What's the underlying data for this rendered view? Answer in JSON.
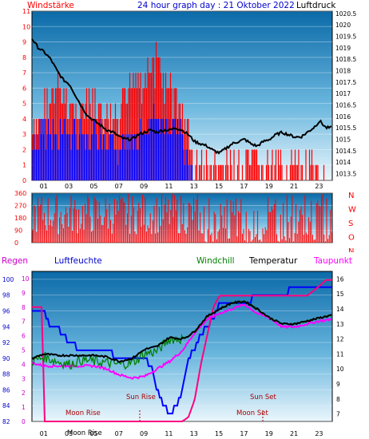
{
  "panel1": {
    "title": "24 hour graph day : 21 Oktober 2022",
    "left_label": "Windstärke",
    "right_label": "Luftdruck",
    "left_ticks": [
      "0",
      "1",
      "2",
      "3",
      "4",
      "5",
      "6",
      "7",
      "8",
      "9",
      "10",
      "11"
    ],
    "right_ticks": [
      "1013.5",
      "1014",
      "1014.5",
      "1015",
      "1015.5",
      "1016",
      "1016.5",
      "1017",
      "1017.5",
      "1018",
      "1018.5",
      "1019",
      "1019.5",
      "1020",
      "1020.5"
    ],
    "hour_ticks": [
      "01",
      "03",
      "05",
      "07",
      "09",
      "11",
      "13",
      "15",
      "17",
      "19",
      "21",
      "23"
    ]
  },
  "panel2": {
    "left_ticks": [
      "0",
      "90",
      "180",
      "270",
      "360"
    ],
    "dir_letters": [
      "N",
      "W",
      "S",
      "O",
      "N"
    ]
  },
  "panel3": {
    "labels": {
      "regen": "Regen",
      "luftfeuchte": "Luftfeuchte",
      "windchill": "Windchill",
      "temperatur": "Temperatur",
      "taupunkt": "Taupunkt"
    },
    "left_humidity_ticks": [
      "82",
      "84",
      "86",
      "88",
      "90",
      "92",
      "94",
      "96",
      "98",
      "100"
    ],
    "left_rain_ticks": [
      "0",
      "1",
      "2",
      "3",
      "4",
      "5",
      "6",
      "7",
      "8",
      "9",
      "10"
    ],
    "right_temp_ticks": [
      "7",
      "8",
      "9",
      "10",
      "11",
      "12",
      "13",
      "14",
      "15",
      "16"
    ],
    "hour_ticks": [
      "01",
      "03",
      "05",
      "07",
      "09",
      "11",
      "13",
      "15",
      "17",
      "19",
      "21",
      "23"
    ],
    "annotations": {
      "moon_rise": "Moon Rise",
      "moon_rise_axis": "Moon Rise",
      "sun_rise": "Sun Rise",
      "sun_set": "Sun Set",
      "moon_set": "Moon Set"
    }
  },
  "colors": {
    "wind_red": "#ff0000",
    "wind_blue": "#0000ff",
    "pressure_black": "#000000",
    "humidity_blue": "#0000ff",
    "temperature_black": "#000000",
    "windchill_green": "#008000",
    "dewpoint_magenta": "#ff00ff",
    "rain_magenta": "#ff0080",
    "label_red": "#ff0000",
    "label_blue": "#0000cc",
    "label_magenta": "#cc00cc"
  },
  "chart_data": [
    {
      "type": "line",
      "title": "24 hour graph day : 21 Oktober 2022",
      "x_range_hours": [
        0,
        24
      ],
      "ylim_left": [
        0,
        11
      ],
      "ylim_right": [
        1013.2,
        1020.6
      ],
      "series": [
        {
          "name": "Luftdruck",
          "axis": "right",
          "x": [
            0,
            0.5,
            1,
            1.5,
            2,
            2.5,
            3,
            3.5,
            4,
            4.5,
            5,
            5.5,
            6,
            6.5,
            7,
            7.5,
            8,
            8.5,
            9,
            9.5,
            10,
            10.5,
            11,
            11.5,
            12,
            12.5,
            13,
            13.5,
            14,
            14.5,
            15,
            15.5,
            16,
            16.5,
            17,
            17.5,
            18,
            18.5,
            19,
            19.5,
            20,
            20.5,
            21,
            21.5,
            22,
            22.5,
            23,
            23.5,
            24
          ],
          "y": [
            1019.4,
            1019.0,
            1018.8,
            1018.5,
            1018.0,
            1017.6,
            1017.4,
            1016.9,
            1016.4,
            1016.0,
            1015.8,
            1015.6,
            1015.4,
            1015.3,
            1015.1,
            1015.0,
            1015.0,
            1015.2,
            1015.3,
            1015.4,
            1015.3,
            1015.4,
            1015.4,
            1015.5,
            1015.4,
            1015.2,
            1014.9,
            1014.8,
            1014.7,
            1014.5,
            1014.4,
            1014.6,
            1014.8,
            1014.9,
            1015.0,
            1014.8,
            1014.7,
            1014.9,
            1015.0,
            1015.2,
            1015.3,
            1015.2,
            1015.1,
            1015.1,
            1015.3,
            1015.5,
            1015.8,
            1015.5,
            1015.5
          ]
        },
        {
          "name": "Windstärke (Böen)",
          "axis": "left",
          "x": [
            0,
            1,
            2,
            3,
            4,
            5,
            6,
            7,
            8,
            9,
            10,
            11,
            12,
            13,
            14,
            15,
            16,
            17,
            18,
            19,
            20,
            21,
            22,
            23,
            24
          ],
          "y": [
            4,
            6,
            7,
            6,
            6,
            6,
            5,
            5,
            8,
            8,
            9,
            7,
            6,
            2,
            2,
            2,
            2,
            2,
            2,
            2,
            2,
            2,
            2,
            1,
            1
          ]
        },
        {
          "name": "Windstärke (Mittel)",
          "axis": "left",
          "x": [
            0,
            1,
            2,
            3,
            4,
            5,
            6,
            7,
            8,
            9,
            10,
            11,
            12,
            13,
            14,
            15,
            16,
            17,
            18,
            19,
            20,
            21,
            22,
            23,
            24
          ],
          "y": [
            3,
            4,
            4,
            4,
            4,
            4,
            3,
            3,
            4,
            4,
            5,
            4,
            4,
            0,
            0,
            0,
            0,
            0,
            0,
            0,
            0,
            0,
            0,
            0,
            0
          ]
        }
      ]
    },
    {
      "type": "scatter",
      "title": "",
      "ylim": [
        0,
        360
      ],
      "series": [
        {
          "name": "Windrichtung",
          "level_pattern_hours": [
            0,
            2,
            4,
            6,
            8,
            10,
            12,
            14,
            16,
            18,
            20,
            22,
            24
          ],
          "y": [
            300,
            310,
            280,
            320,
            290,
            250,
            240,
            0,
            30,
            200,
            280,
            260,
            0
          ]
        }
      ]
    },
    {
      "type": "line",
      "x_range_hours": [
        0,
        24
      ],
      "ylim_humidity": [
        82,
        101
      ],
      "ylim_temp": [
        6.5,
        16.5
      ],
      "series": [
        {
          "name": "Luftfeuchte",
          "axis": "humidity",
          "x": [
            0,
            0.5,
            1,
            1.5,
            2,
            2.5,
            3,
            4,
            5,
            6,
            7,
            8,
            9,
            9.5,
            10,
            10.5,
            11,
            11.5,
            12,
            12.5,
            13,
            13.5,
            14,
            14.5,
            15,
            16,
            17,
            18,
            19,
            20,
            21,
            22,
            23,
            24
          ],
          "y": [
            96,
            96,
            96,
            94,
            94,
            93,
            92,
            91,
            91,
            91,
            90,
            90,
            90,
            89,
            86,
            84,
            83,
            84,
            86,
            90,
            91,
            93,
            94,
            95,
            97,
            97,
            97,
            98,
            98,
            98,
            99,
            99,
            99,
            99
          ]
        },
        {
          "name": "Temperatur",
          "axis": "temp",
          "x": [
            0,
            1,
            2,
            3,
            4,
            5,
            6,
            7,
            8,
            9,
            10,
            11,
            12,
            12.5,
            13,
            14,
            15,
            16,
            17,
            18,
            19,
            20,
            21,
            22,
            23,
            24
          ],
          "y": [
            10.7,
            11.0,
            10.9,
            10.9,
            10.9,
            10.9,
            10.8,
            10.5,
            10.7,
            11.3,
            11.5,
            12.1,
            12.0,
            12.2,
            12.5,
            13.5,
            14.0,
            14.4,
            14.5,
            14.0,
            13.4,
            13.0,
            13.0,
            13.2,
            13.4,
            13.6
          ]
        },
        {
          "name": "Windchill",
          "axis": "temp",
          "x": [
            0,
            1,
            2,
            3,
            4,
            5,
            6,
            7,
            8,
            9,
            10,
            11,
            12,
            12.5,
            13,
            14,
            15,
            16,
            17,
            18,
            19,
            20,
            21,
            22,
            23,
            24
          ],
          "y": [
            10.5,
            10.8,
            10.5,
            10.3,
            10.6,
            10.5,
            10.4,
            10.3,
            10.4,
            11.0,
            11.2,
            12.0,
            12.0,
            12.2,
            12.5,
            13.5,
            14.0,
            14.4,
            14.5,
            14.0,
            13.4,
            13.0,
            13.0,
            13.2,
            13.4,
            13.6
          ]
        },
        {
          "name": "Taupunkt",
          "axis": "temp",
          "x": [
            0,
            1,
            2,
            3,
            4,
            5,
            6,
            7,
            8,
            9,
            10,
            11,
            12,
            12.5,
            13,
            14,
            15,
            16,
            17,
            18,
            19,
            20,
            21,
            22,
            23,
            24
          ],
          "y": [
            10.4,
            10.2,
            10.2,
            10.2,
            10.2,
            10.2,
            10.0,
            9.6,
            9.4,
            9.5,
            10.0,
            10.5,
            11.2,
            11.8,
            12.4,
            13.3,
            13.7,
            14.0,
            14.3,
            13.7,
            13.4,
            12.8,
            12.8,
            13.0,
            13.2,
            13.3
          ]
        },
        {
          "name": "Regen",
          "axis": "rain",
          "x": [
            0,
            0.8,
            1,
            2,
            3,
            4,
            5,
            6,
            7,
            8,
            9,
            10,
            11,
            12,
            12.5,
            13,
            13.5,
            14,
            14.5,
            15,
            16,
            17,
            18,
            19,
            20,
            21,
            22,
            23,
            23.5,
            24
          ],
          "y": [
            8.0,
            8.0,
            0,
            0,
            0,
            0,
            0,
            0,
            0,
            0,
            0,
            0,
            0,
            0,
            0.3,
            1.5,
            4,
            6,
            8,
            8.8,
            8.8,
            8.8,
            8.8,
            8.8,
            8.8,
            8.8,
            8.8,
            9.5,
            9.9,
            9.9
          ]
        }
      ]
    }
  ]
}
